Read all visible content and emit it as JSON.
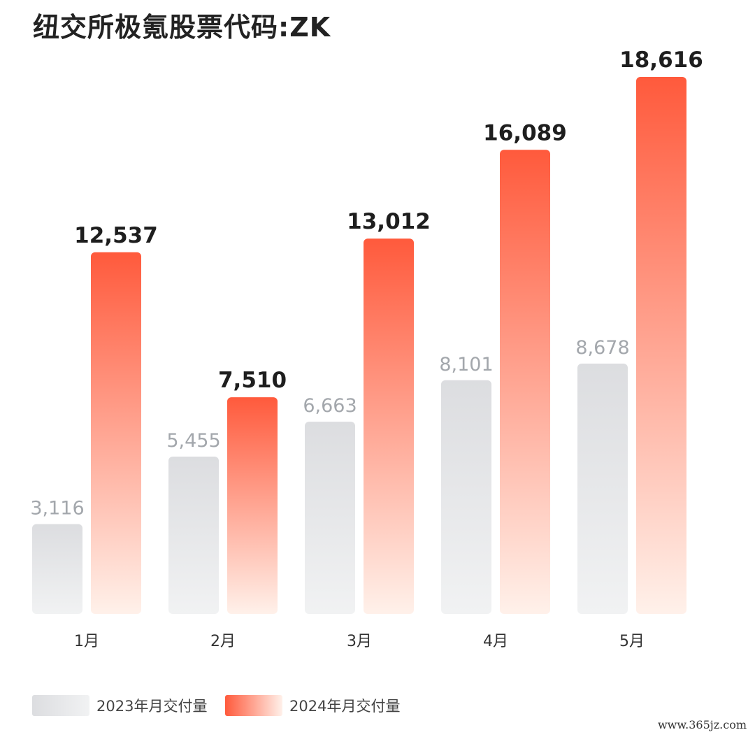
{
  "title": "纽交所极氪股票代码:ZK",
  "watermark": "www.365jz.com",
  "colors": {
    "series_2023_top": "#dcdde0",
    "series_2023_bottom": "#f1f2f3",
    "series_2024_top": "#ff5a3c",
    "series_2024_bottom": "#fff1ea",
    "label_2023": "#a3a7ac",
    "label_2024": "#1e1e1e",
    "axis_label": "#333333"
  },
  "chart_data": {
    "type": "bar",
    "categories": [
      "1月",
      "2月",
      "3月",
      "4月",
      "5月"
    ],
    "series": [
      {
        "name": "2023年月交付量",
        "values": [
          3116,
          5455,
          6663,
          8101,
          8678
        ],
        "labels": [
          "3,116",
          "5,455",
          "6,663",
          "8,101",
          "8,678"
        ]
      },
      {
        "name": "2024年月交付量",
        "values": [
          12537,
          7510,
          13012,
          16089,
          18616
        ],
        "labels": [
          "12,537",
          "7,510",
          "13,012",
          "16,089",
          "18,616"
        ]
      }
    ],
    "title": "纽交所极氪股票代码:ZK",
    "xlabel": "",
    "ylabel": "",
    "grid": false,
    "legend_position": "bottom-left"
  }
}
